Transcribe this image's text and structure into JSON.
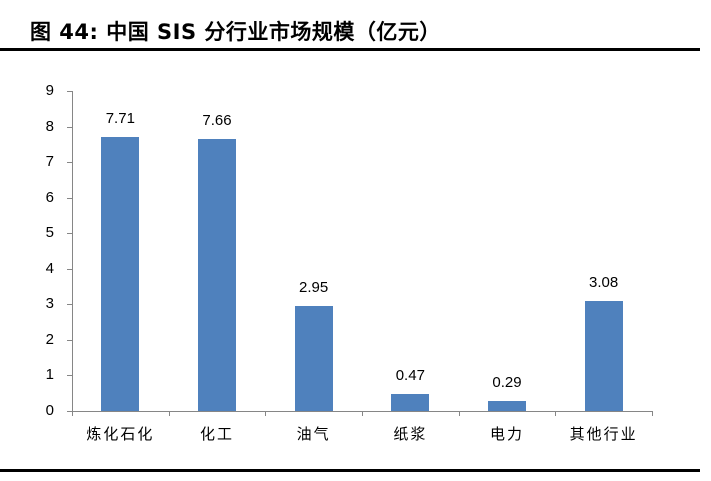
{
  "figure": {
    "title": "图 44:  中国 SIS 分行业市场规模（亿元）"
  },
  "chart_data": {
    "type": "bar",
    "title": "中国 SIS 分行业市场规模（亿元）",
    "categories": [
      "炼化石化",
      "化工",
      "油气",
      "纸浆",
      "电力",
      "其他行业"
    ],
    "values": [
      7.71,
      7.66,
      2.95,
      0.47,
      0.29,
      3.08
    ],
    "value_labels": [
      "7.71",
      "7.66",
      "2.95",
      "0.47",
      "0.29",
      "3.08"
    ],
    "xlabel": "",
    "ylabel": "",
    "ylim": [
      0,
      9
    ],
    "yticks": [
      "0",
      "1",
      "2",
      "3",
      "4",
      "5",
      "6",
      "7",
      "8",
      "9"
    ],
    "grid": false,
    "legend": null,
    "bar_color": "#4f81bd"
  }
}
